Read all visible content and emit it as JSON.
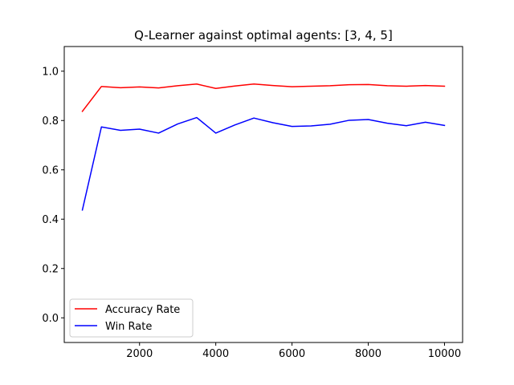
{
  "chart_data": {
    "type": "line",
    "title": "Q-Learner against optimal agents: [3, 4, 5]",
    "xlabel": "",
    "ylabel": "",
    "xlim": [
      25,
      10475
    ],
    "ylim": [
      -0.1,
      1.1
    ],
    "xticks": [
      2000,
      4000,
      6000,
      8000,
      10000
    ],
    "yticks": [
      0.0,
      0.2,
      0.4,
      0.6,
      0.8,
      1.0
    ],
    "xtick_labels": [
      "2000",
      "4000",
      "6000",
      "8000",
      "10000"
    ],
    "ytick_labels": [
      "0.0",
      "0.2",
      "0.4",
      "0.6",
      "0.8",
      "1.0"
    ],
    "grid": false,
    "legend_position": "lower-left",
    "x": [
      500,
      1000,
      1500,
      2000,
      2500,
      3000,
      3500,
      4000,
      4500,
      5000,
      5500,
      6000,
      6500,
      7000,
      7500,
      8000,
      8500,
      9000,
      9500,
      10000
    ],
    "series": [
      {
        "name": "Accuracy Rate",
        "color": "#ff0000",
        "values": [
          0.837,
          0.938,
          0.933,
          0.936,
          0.932,
          0.941,
          0.948,
          0.93,
          0.94,
          0.948,
          0.942,
          0.937,
          0.939,
          0.941,
          0.945,
          0.946,
          0.941,
          0.939,
          0.942,
          0.939
        ]
      },
      {
        "name": "Win Rate",
        "color": "#0000ff",
        "values": [
          0.437,
          0.774,
          0.76,
          0.765,
          0.749,
          0.786,
          0.812,
          0.749,
          0.782,
          0.81,
          0.791,
          0.776,
          0.778,
          0.785,
          0.801,
          0.804,
          0.789,
          0.779,
          0.793,
          0.78
        ]
      }
    ]
  }
}
